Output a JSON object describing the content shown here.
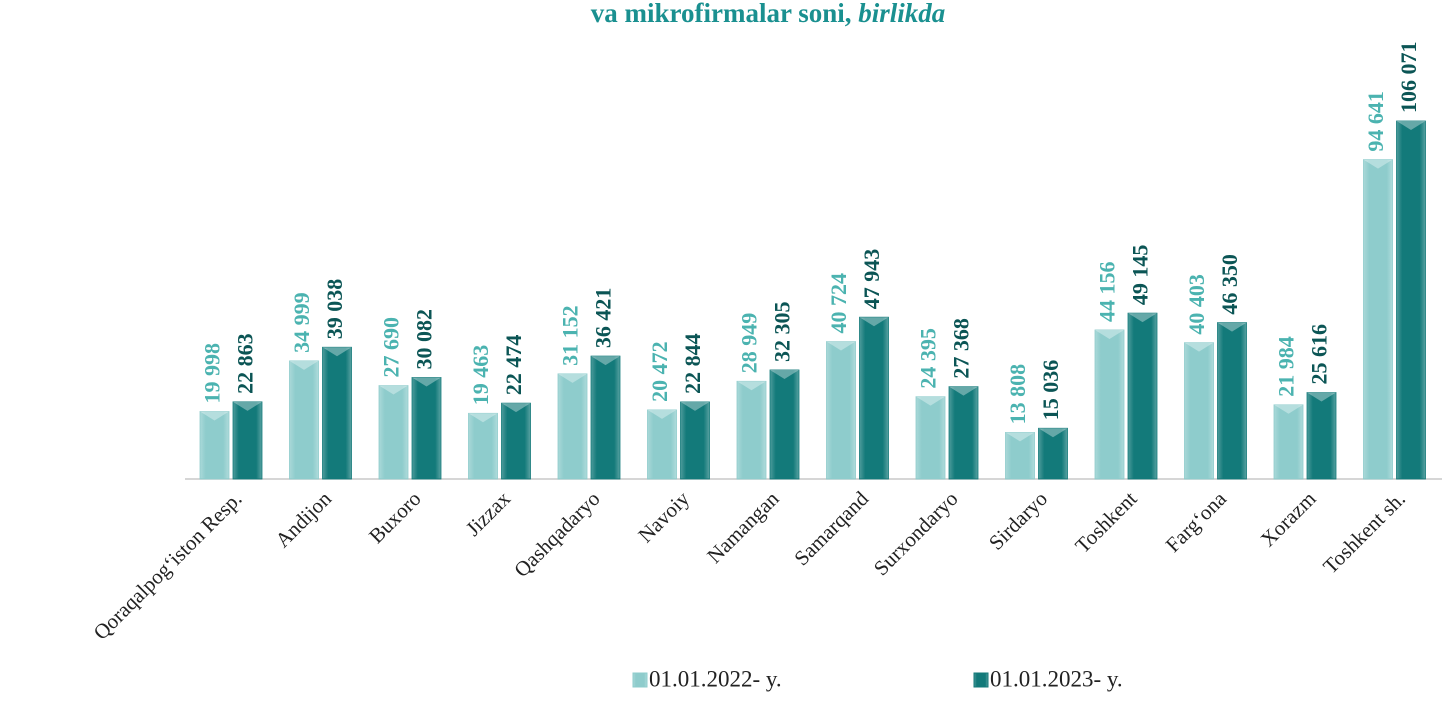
{
  "chart_data": {
    "type": "bar",
    "title": "va mikrofirmalar soni,",
    "title_unit": "birlikda",
    "categories": [
      "Qoraqalpog‘iston Resp.",
      "Andijon",
      "Buxoro",
      "Jizzax",
      "Qashqadaryo",
      "Navoiy",
      "Namangan",
      "Samarqand",
      "Surxondaryo",
      "Sirdaryo",
      "Toshkent",
      "Farg‘ona",
      "Xorazm",
      "Toshkent sh."
    ],
    "series": [
      {
        "name": "01.01.2022- y.",
        "color": "#8ecccc",
        "label_color": "#4bb3b0",
        "values": [
          19998,
          34999,
          27690,
          19463,
          31152,
          20472,
          28949,
          40724,
          24395,
          13808,
          44156,
          40403,
          21984,
          94641
        ],
        "value_labels": [
          "19 998",
          "34 999",
          "27 690",
          "19 463",
          "31 152",
          "20 472",
          "28 949",
          "40 724",
          "24 395",
          "13 808",
          "44 156",
          "40 403",
          "21 984",
          "94 641"
        ]
      },
      {
        "name": "01.01.2023- y.",
        "color": "#137a7a",
        "label_color": "#0b5555",
        "values": [
          22863,
          39038,
          30082,
          22474,
          36421,
          22844,
          32305,
          47943,
          27368,
          15036,
          49145,
          46350,
          25616,
          106071
        ],
        "value_labels": [
          "22 863",
          "39 038",
          "30 082",
          "22 474",
          "36 421",
          "22 844",
          "32 305",
          "47 943",
          "27 368",
          "15 036",
          "49 145",
          "46 350",
          "25 616",
          "106 071"
        ]
      }
    ]
  }
}
